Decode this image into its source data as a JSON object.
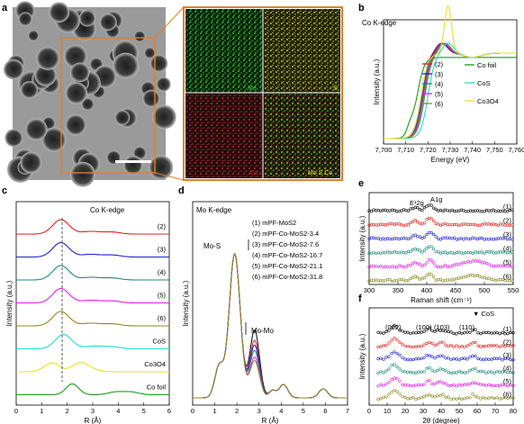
{
  "panel_labels": [
    "a",
    "b",
    "c",
    "d",
    "e",
    "f"
  ],
  "panel_a": {
    "eds_maps": [
      {
        "element": "Mo",
        "color": "#2fd12f"
      },
      {
        "element": "S",
        "color": "#e6e62a"
      },
      {
        "element": "Co",
        "color": "#e02a2a"
      },
      {
        "element": "Mo S Co",
        "color": "#e6e62a"
      }
    ],
    "frame_color": "#e67e22"
  },
  "chart_data": [
    {
      "panel": "b",
      "type": "line",
      "title": "Co K-edge",
      "xlabel": "Energy (eV)",
      "ylabel": "Intensity (a.u.)",
      "xlim": [
        7700,
        7760
      ],
      "xticks": [
        "7,700",
        "7,710",
        "7,720",
        "7,730",
        "7,740",
        "7,750",
        "7,760"
      ],
      "legend": [
        {
          "name": "(2)",
          "color": "#e02020"
        },
        {
          "name": "(3)",
          "color": "#2020d0"
        },
        {
          "name": "(4)",
          "color": "#1a8a7a"
        },
        {
          "name": "(5)",
          "color": "#e020e0"
        },
        {
          "name": "(6)",
          "color": "#8a8a20"
        },
        {
          "name": "Co foil",
          "color": "#1a9a1a"
        },
        {
          "name": "CoS",
          "color": "#20d8d8"
        },
        {
          "name": "Co3O4",
          "color": "#e8e020"
        }
      ]
    },
    {
      "panel": "c",
      "type": "line",
      "title": "Co K-edge",
      "xlabel": "R (Å)",
      "ylabel": "Intensity (a.u.)",
      "xlim": [
        0,
        6
      ],
      "xticks": [
        "0",
        "1",
        "2",
        "3",
        "4",
        "5",
        "6"
      ],
      "series": [
        {
          "name": "(2)",
          "color": "#e02020",
          "peak": 1.75
        },
        {
          "name": "(3)",
          "color": "#2020d0",
          "peak": 1.75
        },
        {
          "name": "(4)",
          "color": "#1a8a7a",
          "peak": 1.75
        },
        {
          "name": "(5)",
          "color": "#e020e0",
          "peak": 1.75
        },
        {
          "name": "(6)",
          "color": "#8a8a20",
          "peak": 1.75
        },
        {
          "name": "CoS",
          "color": "#20d8d8",
          "peak": 1.85
        },
        {
          "name": "Co3O4",
          "color": "#e8e020",
          "peak": 1.4
        },
        {
          "name": "Co foil",
          "color": "#1a9a1a",
          "peak": 2.2
        }
      ]
    },
    {
      "panel": "d",
      "type": "line",
      "title": "Mo K-edge",
      "xlabel": "R (Å)",
      "ylabel": "Intensity (a.u.)",
      "xlim": [
        0,
        7
      ],
      "xticks": [
        "0",
        "1",
        "2",
        "3",
        "4",
        "5",
        "6",
        "7"
      ],
      "annotations": [
        "Mo-S",
        "Mo-Mo"
      ],
      "series": [
        {
          "name": "(1) mPF-MoS2",
          "color": "#000000"
        },
        {
          "name": "(2) mPF-Co-MoS2-3.4",
          "color": "#e02020"
        },
        {
          "name": "(3) mPF-Co-MoS2-7.6",
          "color": "#2020d0"
        },
        {
          "name": "(4) mPF-Co-MoS2-16.7",
          "color": "#1a8a7a"
        },
        {
          "name": "(5) mPF-Co-MoS2-21.1",
          "color": "#e020e0"
        },
        {
          "name": "(6) mPF-Co-MoS2-31.8",
          "color": "#8a8a20"
        }
      ]
    },
    {
      "panel": "e",
      "type": "scatter",
      "xlabel": "Raman shift (cm⁻¹)",
      "ylabel": "Intensity (a.u.)",
      "xlim": [
        300,
        550
      ],
      "xticks": [
        "300",
        "350",
        "400",
        "450",
        "500",
        "550"
      ],
      "annotations": [
        "E¹2g",
        "A1g"
      ],
      "series": [
        {
          "name": "(1)",
          "color": "#000000"
        },
        {
          "name": "(2)",
          "color": "#e02020"
        },
        {
          "name": "(3)",
          "color": "#2020d0"
        },
        {
          "name": "(4)",
          "color": "#1a8a7a"
        },
        {
          "name": "(5)",
          "color": "#e020e0"
        },
        {
          "name": "(6)",
          "color": "#8a8a20"
        }
      ]
    },
    {
      "panel": "f",
      "type": "scatter",
      "xlabel": "2θ (degree)",
      "ylabel": "Intensity (a.u.)",
      "xlim": [
        0,
        80
      ],
      "xticks": [
        "0",
        "10",
        "20",
        "30",
        "40",
        "50",
        "60",
        "70",
        "80"
      ],
      "annotations": [
        "(002)",
        "(100)",
        "(103)",
        "(110)",
        "▼ CoS"
      ],
      "series": [
        {
          "name": "(1)",
          "color": "#000000"
        },
        {
          "name": "(2)",
          "color": "#e02020"
        },
        {
          "name": "(3)",
          "color": "#2020d0"
        },
        {
          "name": "(4)",
          "color": "#1a8a7a"
        },
        {
          "name": "(5)",
          "color": "#e020e0"
        },
        {
          "name": "(6)",
          "color": "#8a8a20"
        }
      ]
    }
  ]
}
